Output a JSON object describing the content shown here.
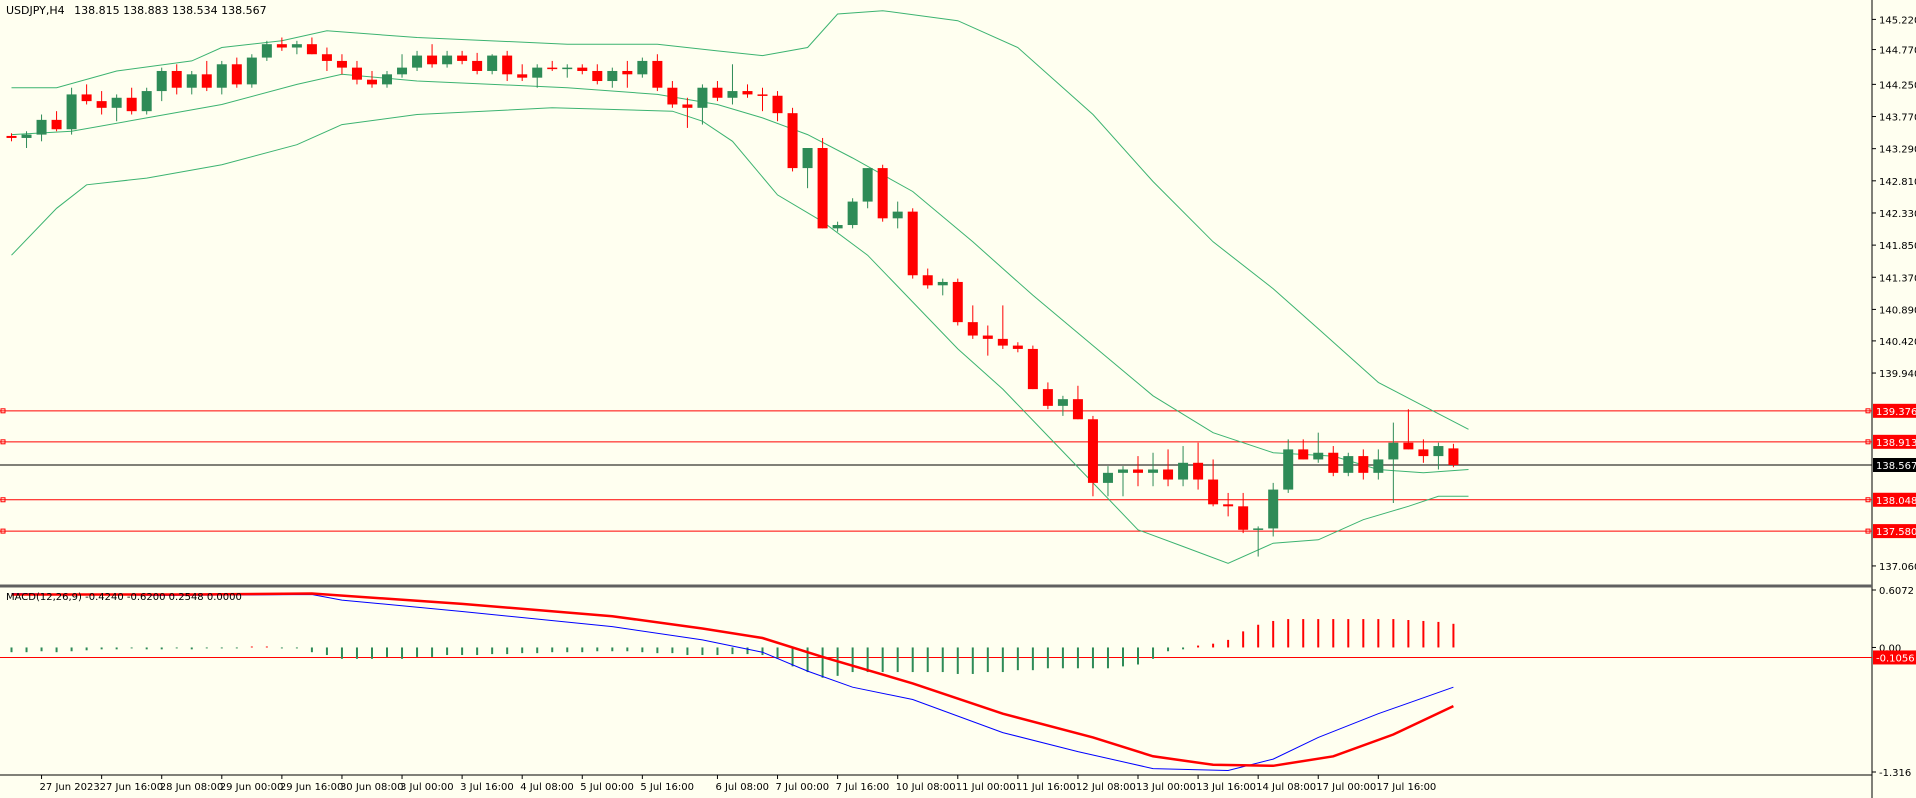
{
  "header": {
    "symbol": "USDJPY,H4",
    "ohlc": "138.815 138.883 138.534 138.567"
  },
  "chart_data": [
    {
      "type": "candlestick",
      "symbol": "USDJPY",
      "timeframe": "H4",
      "ylim": [
        136.85,
        145.45
      ],
      "y_ticks": [
        "145.220",
        "144.770",
        "144.250",
        "143.770",
        "143.290",
        "142.810",
        "142.330",
        "141.850",
        "141.370",
        "140.890",
        "140.420",
        "139.940",
        "137.060"
      ],
      "current_price": {
        "value": 138.567,
        "label": "138.567"
      },
      "levels": [
        {
          "value": 139.376,
          "label": "139.376"
        },
        {
          "value": 138.913,
          "label": "138.913"
        },
        {
          "value": 138.048,
          "label": "138.048"
        },
        {
          "value": 137.58,
          "label": "137.580"
        }
      ],
      "candles": [
        [
          143.48,
          143.52,
          143.4,
          143.45
        ],
        [
          143.45,
          143.55,
          143.3,
          143.5
        ],
        [
          143.5,
          143.8,
          143.4,
          143.72
        ],
        [
          143.72,
          143.85,
          143.55,
          143.58
        ],
        [
          143.58,
          144.2,
          143.5,
          144.1
        ],
        [
          144.1,
          144.25,
          143.95,
          144.0
        ],
        [
          144.0,
          144.15,
          143.8,
          143.9
        ],
        [
          143.9,
          144.1,
          143.7,
          144.05
        ],
        [
          144.05,
          144.2,
          143.8,
          143.85
        ],
        [
          143.85,
          144.2,
          143.8,
          144.15
        ],
        [
          144.15,
          144.5,
          144.0,
          144.45
        ],
        [
          144.45,
          144.55,
          144.1,
          144.2
        ],
        [
          144.2,
          144.45,
          144.1,
          144.4
        ],
        [
          144.4,
          144.6,
          144.15,
          144.2
        ],
        [
          144.2,
          144.6,
          144.1,
          144.55
        ],
        [
          144.55,
          144.65,
          144.2,
          144.25
        ],
        [
          144.25,
          144.7,
          144.2,
          144.65
        ],
        [
          144.65,
          144.9,
          144.6,
          144.85
        ],
        [
          144.85,
          144.95,
          144.75,
          144.8
        ],
        [
          144.8,
          144.9,
          144.7,
          144.85
        ],
        [
          144.85,
          144.95,
          144.7,
          144.7
        ],
        [
          144.7,
          144.8,
          144.45,
          144.6
        ],
        [
          144.6,
          144.7,
          144.4,
          144.5
        ],
        [
          144.5,
          144.6,
          144.25,
          144.32
        ],
        [
          144.32,
          144.45,
          144.2,
          144.25
        ],
        [
          144.25,
          144.45,
          144.2,
          144.4
        ],
        [
          144.4,
          144.7,
          144.35,
          144.5
        ],
        [
          144.5,
          144.75,
          144.45,
          144.68
        ],
        [
          144.68,
          144.85,
          144.5,
          144.55
        ],
        [
          144.55,
          144.75,
          144.5,
          144.68
        ],
        [
          144.68,
          144.75,
          144.55,
          144.6
        ],
        [
          144.6,
          144.72,
          144.4,
          144.45
        ],
        [
          144.45,
          144.7,
          144.4,
          144.68
        ],
        [
          144.68,
          144.75,
          144.3,
          144.4
        ],
        [
          144.4,
          144.55,
          144.3,
          144.35
        ],
        [
          144.35,
          144.55,
          144.2,
          144.5
        ],
        [
          144.5,
          144.6,
          144.45,
          144.48
        ],
        [
          144.48,
          144.55,
          144.35,
          144.5
        ],
        [
          144.5,
          144.55,
          144.4,
          144.45
        ],
        [
          144.45,
          144.55,
          144.25,
          144.3
        ],
        [
          144.3,
          144.5,
          144.2,
          144.45
        ],
        [
          144.45,
          144.6,
          144.2,
          144.4
        ],
        [
          144.4,
          144.65,
          144.35,
          144.6
        ],
        [
          144.6,
          144.7,
          144.15,
          144.2
        ],
        [
          144.2,
          144.3,
          143.9,
          143.95
        ],
        [
          143.95,
          144.05,
          143.6,
          143.9
        ],
        [
          143.9,
          144.25,
          143.65,
          144.2
        ],
        [
          144.2,
          144.3,
          144.0,
          144.05
        ],
        [
          144.05,
          144.55,
          143.95,
          144.15
        ],
        [
          144.15,
          144.25,
          144.05,
          144.1
        ],
        [
          144.1,
          144.2,
          143.85,
          144.08
        ],
        [
          144.08,
          144.15,
          143.7,
          143.82
        ],
        [
          143.82,
          143.9,
          142.95,
          143.0
        ],
        [
          143.0,
          143.3,
          142.7,
          143.3
        ],
        [
          143.3,
          143.45,
          142.1,
          142.1
        ],
        [
          142.1,
          142.2,
          142.05,
          142.15
        ],
        [
          142.15,
          142.55,
          142.1,
          142.5
        ],
        [
          142.5,
          143.0,
          142.4,
          143.0
        ],
        [
          143.0,
          143.05,
          142.2,
          142.25
        ],
        [
          142.25,
          142.5,
          142.1,
          142.35
        ],
        [
          142.35,
          142.4,
          141.35,
          141.4
        ],
        [
          141.4,
          141.5,
          141.2,
          141.25
        ],
        [
          141.25,
          141.35,
          141.1,
          141.3
        ],
        [
          141.3,
          141.35,
          140.65,
          140.7
        ],
        [
          140.7,
          140.95,
          140.45,
          140.5
        ],
        [
          140.5,
          140.65,
          140.2,
          140.45
        ],
        [
          140.45,
          140.95,
          140.3,
          140.35
        ],
        [
          140.35,
          140.4,
          140.25,
          140.3
        ],
        [
          140.3,
          140.35,
          139.7,
          139.7
        ],
        [
          139.7,
          139.8,
          139.4,
          139.45
        ],
        [
          139.45,
          139.6,
          139.3,
          139.55
        ],
        [
          139.55,
          139.75,
          139.25,
          139.25
        ],
        [
          139.25,
          139.3,
          138.1,
          138.3
        ],
        [
          138.3,
          138.55,
          138.1,
          138.45
        ],
        [
          138.45,
          138.55,
          138.1,
          138.5
        ],
        [
          138.5,
          138.7,
          138.25,
          138.45
        ],
        [
          138.45,
          138.75,
          138.25,
          138.5
        ],
        [
          138.5,
          138.8,
          138.25,
          138.35
        ],
        [
          138.35,
          138.85,
          138.25,
          138.6
        ],
        [
          138.6,
          138.9,
          138.2,
          138.35
        ],
        [
          138.35,
          138.65,
          137.95,
          137.98
        ],
        [
          137.98,
          138.15,
          137.8,
          137.95
        ],
        [
          137.95,
          138.15,
          137.55,
          137.6
        ],
        [
          137.6,
          137.65,
          137.2,
          137.62
        ],
        [
          137.62,
          138.3,
          137.5,
          138.2
        ],
        [
          138.2,
          138.95,
          138.15,
          138.8
        ],
        [
          138.8,
          138.95,
          138.65,
          138.65
        ],
        [
          138.65,
          139.05,
          138.6,
          138.75
        ],
        [
          138.75,
          138.85,
          138.4,
          138.45
        ],
        [
          138.45,
          138.75,
          138.4,
          138.7
        ],
        [
          138.7,
          138.8,
          138.35,
          138.45
        ],
        [
          138.45,
          138.8,
          138.35,
          138.65
        ],
        [
          138.65,
          139.2,
          138.0,
          138.9
        ],
        [
          138.9,
          139.4,
          138.8,
          138.8
        ],
        [
          138.8,
          138.95,
          138.6,
          138.7
        ],
        [
          138.7,
          138.9,
          138.5,
          138.85
        ],
        [
          138.815,
          138.883,
          138.534,
          138.567
        ]
      ],
      "bollinger_bands": {
        "upper": [
          [
            0,
            144.2
          ],
          [
            3,
            144.2
          ],
          [
            7,
            144.45
          ],
          [
            12,
            144.6
          ],
          [
            14,
            144.8
          ],
          [
            18,
            144.9
          ],
          [
            21,
            145.05
          ],
          [
            27,
            144.95
          ],
          [
            37,
            144.85
          ],
          [
            43,
            144.85
          ],
          [
            47,
            144.75
          ],
          [
            50,
            144.68
          ],
          [
            53,
            144.8
          ],
          [
            55,
            145.3
          ],
          [
            58,
            145.35
          ],
          [
            63,
            145.2
          ],
          [
            67,
            144.8
          ],
          [
            72,
            143.8
          ],
          [
            76,
            142.8
          ],
          [
            80,
            141.9
          ],
          [
            84,
            141.2
          ],
          [
            87,
            140.6
          ],
          [
            91,
            139.8
          ],
          [
            94,
            139.45
          ],
          [
            97,
            139.1
          ]
        ],
        "middle": [
          [
            0,
            143.5
          ],
          [
            4,
            143.55
          ],
          [
            9,
            143.75
          ],
          [
            14,
            143.95
          ],
          [
            19,
            144.25
          ],
          [
            22,
            144.4
          ],
          [
            27,
            144.3
          ],
          [
            37,
            144.2
          ],
          [
            43,
            144.1
          ],
          [
            47,
            143.95
          ],
          [
            50,
            143.75
          ],
          [
            53,
            143.5
          ],
          [
            56,
            143.15
          ],
          [
            60,
            142.65
          ],
          [
            64,
            141.9
          ],
          [
            68,
            141.1
          ],
          [
            72,
            140.35
          ],
          [
            76,
            139.6
          ],
          [
            80,
            139.05
          ],
          [
            84,
            138.75
          ],
          [
            88,
            138.7
          ],
          [
            91,
            138.5
          ],
          [
            94,
            138.45
          ],
          [
            97,
            138.5
          ]
        ],
        "lower": [
          [
            0,
            141.7
          ],
          [
            3,
            142.4
          ],
          [
            5,
            142.75
          ],
          [
            9,
            142.85
          ],
          [
            14,
            143.05
          ],
          [
            19,
            143.35
          ],
          [
            22,
            143.65
          ],
          [
            27,
            143.8
          ],
          [
            36,
            143.9
          ],
          [
            44,
            143.85
          ],
          [
            46,
            143.7
          ],
          [
            48,
            143.4
          ],
          [
            51,
            142.6
          ],
          [
            54,
            142.2
          ],
          [
            57,
            141.7
          ],
          [
            60,
            141.0
          ],
          [
            63,
            140.3
          ],
          [
            66,
            139.7
          ],
          [
            69,
            139.0
          ],
          [
            72,
            138.3
          ],
          [
            75,
            137.6
          ],
          [
            78,
            137.35
          ],
          [
            81,
            137.1
          ],
          [
            84,
            137.4
          ],
          [
            87,
            137.45
          ],
          [
            90,
            137.75
          ],
          [
            93,
            137.95
          ],
          [
            95,
            138.1
          ],
          [
            97,
            138.1
          ]
        ]
      },
      "x_ticks": [
        {
          "i": 2,
          "label": "27 Jun 2023"
        },
        {
          "i": 6,
          "label": "27 Jun 16:00"
        },
        {
          "i": 10,
          "label": "28 Jun 08:00"
        },
        {
          "i": 14,
          "label": "29 Jun 00:00"
        },
        {
          "i": 18,
          "label": "29 Jun 16:00"
        },
        {
          "i": 22,
          "label": "30 Jun 08:00"
        },
        {
          "i": 26,
          "label": "3 Jul 00:00"
        },
        {
          "i": 30,
          "label": "3 Jul 16:00"
        },
        {
          "i": 34,
          "label": "4 Jul 08:00"
        },
        {
          "i": 38,
          "label": "5 Jul 00:00"
        },
        {
          "i": 42,
          "label": "5 Jul 16:00"
        },
        {
          "i": 47,
          "label": "6 Jul 08:00"
        },
        {
          "i": 51,
          "label": "7 Jul 00:00"
        },
        {
          "i": 55,
          "label": "7 Jul 16:00"
        },
        {
          "i": 59,
          "label": "10 Jul 08:00"
        },
        {
          "i": 63,
          "label": "11 Jul 00:00"
        },
        {
          "i": 67,
          "label": "11 Jul 16:00"
        },
        {
          "i": 71,
          "label": "12 Jul 08:00"
        },
        {
          "i": 75,
          "label": "13 Jul 00:00"
        },
        {
          "i": 79,
          "label": "13 Jul 16:00"
        },
        {
          "i": 83,
          "label": "14 Jul 08:00"
        },
        {
          "i": 87,
          "label": "17 Jul 00:00"
        },
        {
          "i": 91,
          "label": "17 Jul 16:00"
        }
      ]
    },
    {
      "type": "macd",
      "title": "MACD(12,26,9) -0.4240 -0.6200 0.2548 0.0000",
      "ylim": [
        -1.316,
        0.6072
      ],
      "y_ticks": [
        "0.6072",
        "0.00",
        "-1.316"
      ],
      "level": {
        "value": -0.1056,
        "label": "-0.1056"
      },
      "histogram": [
        -0.05,
        -0.05,
        -0.04,
        -0.05,
        -0.04,
        -0.03,
        -0.02,
        -0.02,
        -0.01,
        -0.02,
        -0.02,
        -0.01,
        -0.02,
        -0.01,
        -0.01,
        -0.01,
        0.01,
        0.01,
        -0.01,
        -0.01,
        -0.05,
        -0.08,
        -0.12,
        -0.12,
        -0.12,
        -0.1,
        -0.12,
        -0.1,
        -0.1,
        -0.08,
        -0.08,
        -0.08,
        -0.07,
        -0.07,
        -0.06,
        -0.06,
        -0.05,
        -0.05,
        -0.05,
        -0.04,
        -0.04,
        -0.04,
        -0.05,
        -0.06,
        -0.06,
        -0.08,
        -0.08,
        -0.08,
        -0.07,
        -0.07,
        -0.08,
        -0.12,
        -0.2,
        -0.26,
        -0.32,
        -0.3,
        -0.26,
        -0.26,
        -0.26,
        -0.26,
        -0.26,
        -0.26,
        -0.26,
        -0.28,
        -0.28,
        -0.26,
        -0.26,
        -0.24,
        -0.24,
        -0.22,
        -0.22,
        -0.22,
        -0.22,
        -0.22,
        -0.2,
        -0.18,
        -0.12,
        -0.04,
        -0.02,
        0.02,
        0.04,
        0.08,
        0.17,
        0.24,
        0.28,
        0.3,
        0.3,
        0.3,
        0.3,
        0.3,
        0.3,
        0.3,
        0.3,
        0.29,
        0.28,
        0.27,
        0.25
      ],
      "macd_line": [
        [
          0,
          0.57
        ],
        [
          10,
          0.55
        ],
        [
          20,
          0.56
        ],
        [
          22,
          0.5
        ],
        [
          30,
          0.38
        ],
        [
          40,
          0.22
        ],
        [
          46,
          0.08
        ],
        [
          50,
          -0.05
        ],
        [
          53,
          -0.25
        ],
        [
          56,
          -0.42
        ],
        [
          60,
          -0.55
        ],
        [
          66,
          -0.9
        ],
        [
          71,
          -1.1
        ],
        [
          76,
          -1.28
        ],
        [
          81,
          -1.3
        ],
        [
          84,
          -1.18
        ],
        [
          87,
          -0.95
        ],
        [
          91,
          -0.7
        ],
        [
          96,
          -0.42
        ]
      ],
      "signal_line": [
        [
          0,
          0.56
        ],
        [
          12,
          0.56
        ],
        [
          20,
          0.57
        ],
        [
          30,
          0.46
        ],
        [
          40,
          0.33
        ],
        [
          46,
          0.2
        ],
        [
          50,
          0.1
        ],
        [
          54,
          -0.1
        ],
        [
          60,
          -0.38
        ],
        [
          66,
          -0.7
        ],
        [
          72,
          -0.95
        ],
        [
          76,
          -1.15
        ],
        [
          80,
          -1.24
        ],
        [
          84,
          -1.25
        ],
        [
          88,
          -1.15
        ],
        [
          92,
          -0.92
        ],
        [
          96,
          -0.62
        ]
      ]
    }
  ]
}
